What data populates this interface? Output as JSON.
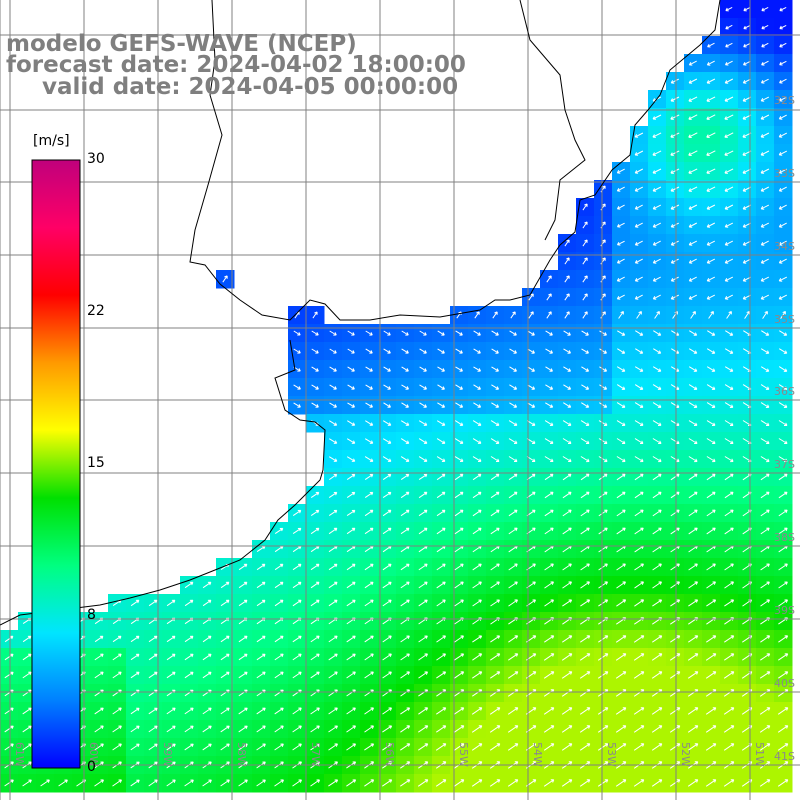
{
  "title": {
    "model": "modelo GEFS-WAVE (NCEP)",
    "forecast": "forecast date: 2024-04-02 18:00:00",
    "valid": "valid date: 2024-04-05 00:00:00"
  },
  "colorbar": {
    "unit": "[m/s]",
    "min": 0,
    "max": 30,
    "ticks": [
      "30",
      "22",
      "15",
      "8",
      "0"
    ],
    "tick_values": [
      30,
      22.5,
      15,
      7.5,
      0
    ],
    "colors": [
      "#0000ff",
      "#0080ff",
      "#00e5ff",
      "#00ff80",
      "#00e000",
      "#ffff00",
      "#ff9900",
      "#ff0000",
      "#ff0066",
      "#c0007c"
    ]
  },
  "grid": {
    "lon_labels": [
      "61W",
      "60W",
      "59W",
      "58W",
      "57W",
      "56W",
      "55W",
      "54W",
      "53W",
      "52W",
      "51W"
    ],
    "lat_labels": [
      "32S",
      "33S",
      "34S",
      "35S",
      "36S",
      "37S",
      "38S",
      "39S",
      "40S",
      "41S"
    ]
  },
  "legend_colors": {
    "land": "#ffffff",
    "coast": "#000000",
    "grid": "#808080",
    "arrows": "#ffffff"
  }
}
